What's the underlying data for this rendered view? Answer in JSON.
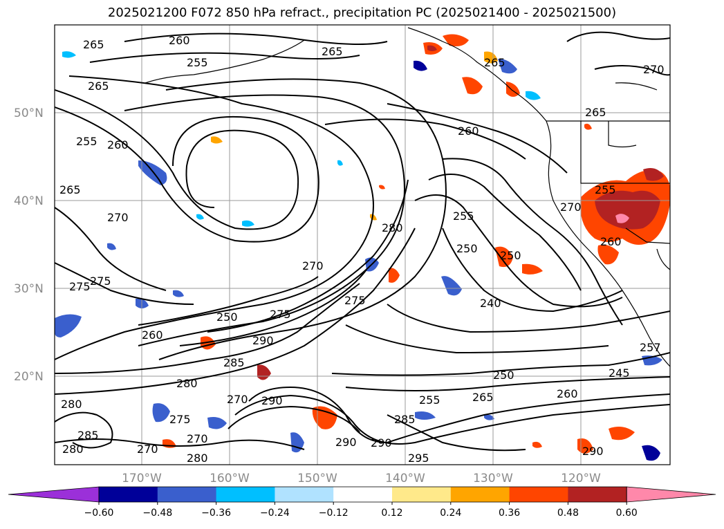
{
  "title": "2025021200 F072 850 hPa refract., precipitation PC (2025021400 - 2025021500)",
  "lat_labels": [
    "50°N",
    "40°N",
    "30°N",
    "20°N"
  ],
  "lon_labels": [
    "170°W",
    "160°W",
    "150°W",
    "140°W",
    "130°W",
    "120°W"
  ],
  "contour_labels": [
    "265",
    "260",
    "255",
    "265",
    "270",
    "265",
    "260",
    "255",
    "270",
    "265",
    "265",
    "260",
    "255",
    "265",
    "270",
    "280",
    "255",
    "250",
    "275",
    "275",
    "250",
    "260",
    "270",
    "275",
    "240",
    "275",
    "290",
    "280",
    "285",
    "250",
    "245",
    "280",
    "285",
    "270",
    "290",
    "255",
    "265",
    "260",
    "280",
    "270",
    "275",
    "290",
    "285",
    "290",
    "295",
    "290",
    "257",
    "270",
    "250",
    "260",
    "280"
  ],
  "colorbar": {
    "ticks": [
      "−0.60",
      "−0.48",
      "−0.36",
      "−0.24",
      "−0.12",
      "0.12",
      "0.24",
      "0.36",
      "0.48",
      "0.60"
    ],
    "colors": [
      "#9b30d9",
      "#000099",
      "#3a5fcd",
      "#00bfff",
      "#b0e2ff",
      "#ffffff",
      "#ffe98a",
      "#ffa500",
      "#ff4500",
      "#b22222",
      "#ff88aa"
    ]
  }
}
